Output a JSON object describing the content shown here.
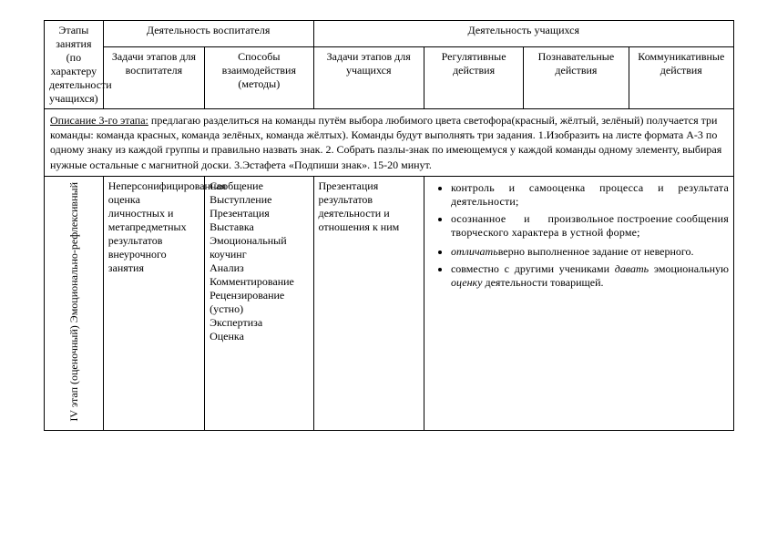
{
  "header": {
    "col0a": "Этапы занятия",
    "col0b": "(по характеру деятельности учащихся)",
    "group1": "Деятельность воспитателя",
    "group2": "Деятельность учащихся",
    "col1": "Задачи этапов для воспитателя",
    "col2": "Способы взаимодействия (методы)",
    "col3": "Задачи этапов для учащихся",
    "col4": "Регулятивные действия",
    "col5": "Познавательные действия",
    "col6": "Коммуникативные действия"
  },
  "stage3": {
    "label": "Описание 3-го этапа:",
    "text": " предлагаю разделиться на команды путём выбора любимого цвета светофора(красный, жёлтый, зелёный) получается три команды: команда красных, команда зелёных, команда жёлтых). Команды будут выполнять три задания. 1.Изобразить на листе формата А-3 по одному знаку из каждой группы и правильно назвать знак. 2. Собрать пазлы-знак по имеющемуся у каждой команды одному элементу, выбирая нужные остальные с магнитной доски. 3.Эстафета «Подпиши знак». 15-20 минут."
  },
  "row": {
    "stage_label": "IV этап (оценочный) Эмоционально-рефлексивный",
    "col1": "Неперсонифицированная оценка личностных и метапредметных результатов внеурочного занятия",
    "col2": "Сообщение\nВыступление\nПрезентация\nВыставка\nЭмоциональный коучинг\nАнализ\nКомментирование\nРецензирование (устно)\nЭкспертиза\nОценка",
    "col3": "Презентация результатов деятельности и отношения к ним",
    "bullets": {
      "b1a": "контроль и самооценка процесса и результата деятельности;",
      "b1b_pre": "осознанное ",
      "b1b_and": "и",
      "b1b_post": " произвольное построение сообщения творческого характера в устной форме;",
      "b2a_em": "отличать",
      "b2a_rest": "верно выполненное задание от неверного.",
      "b2b_pre": "совместно с другими учениками ",
      "b2b_em1": "давать",
      "b2b_mid": " эмоциональную ",
      "b2b_em2": "оценку",
      "b2b_post": " деятельности товарищей."
    }
  }
}
